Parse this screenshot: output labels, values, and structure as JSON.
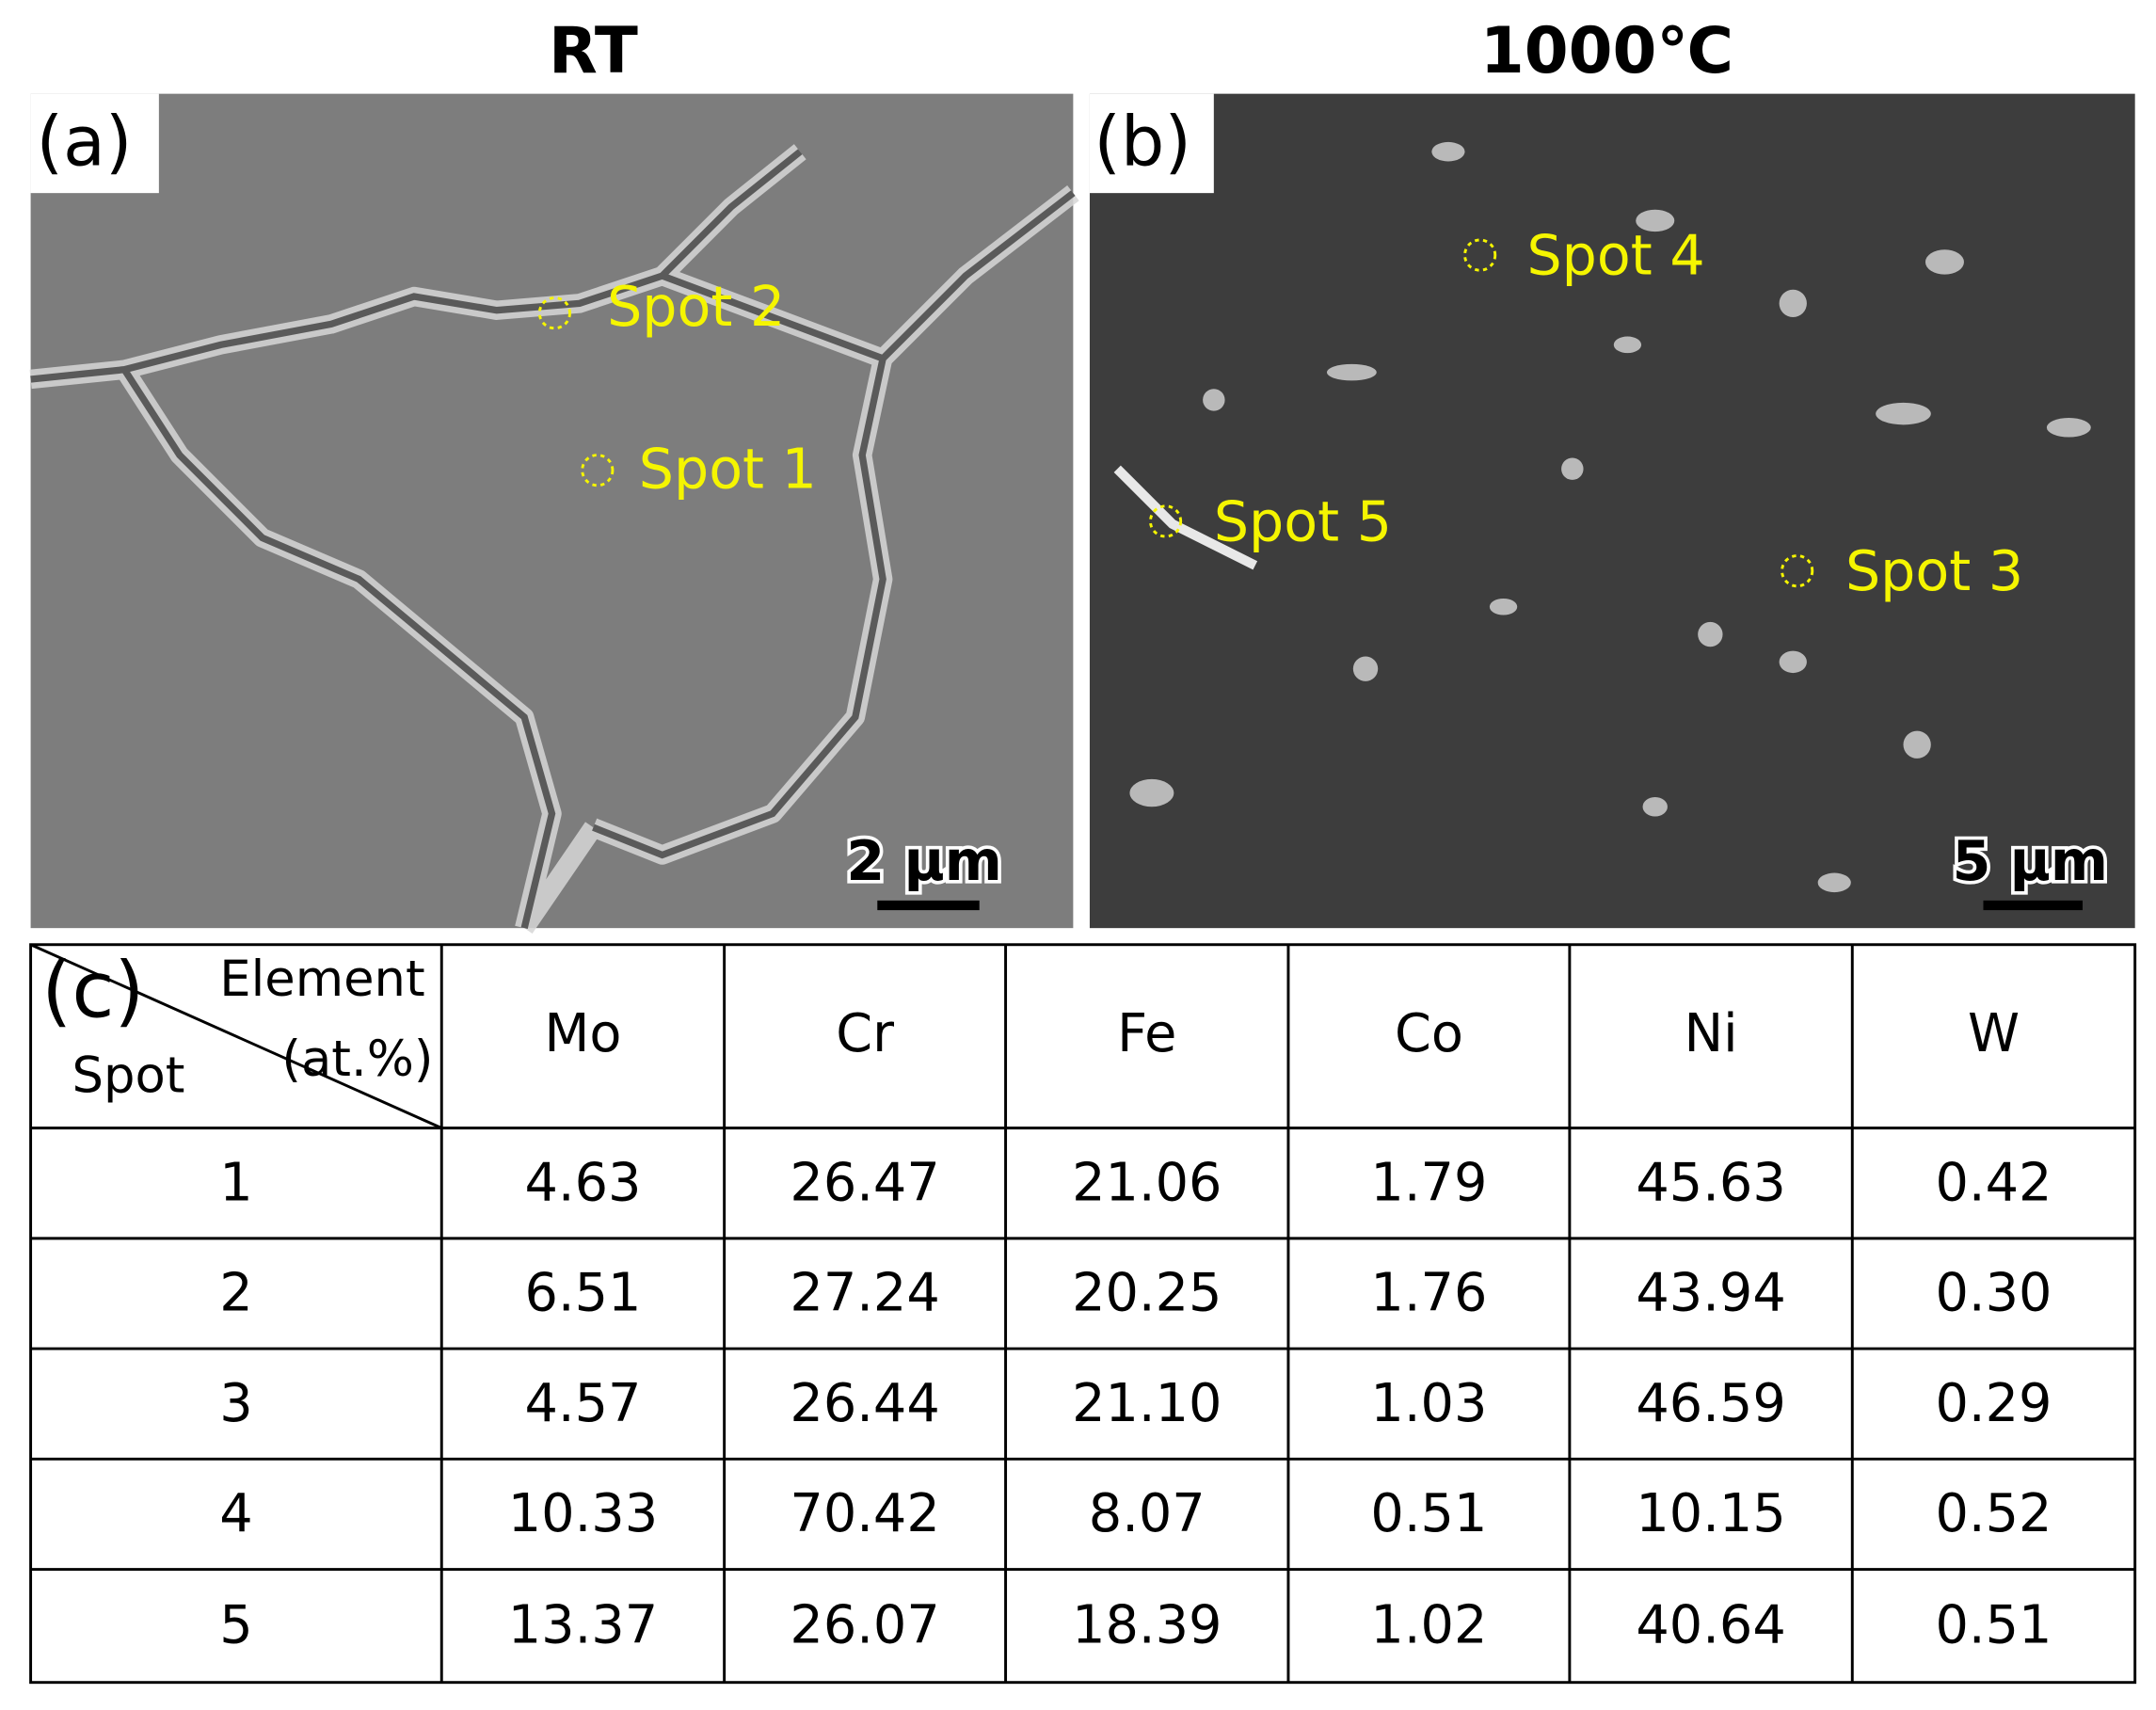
{
  "panels": [
    {
      "label": "(a)",
      "title": "RT",
      "spots": [
        "Spot 2",
        "Spot 1"
      ],
      "scale_bar": "2 μm"
    },
    {
      "label": "(b)",
      "title": "1000℃",
      "spots": [
        "Spot 4",
        "Spot 5",
        "Spot 3"
      ],
      "scale_bar": "5 μm"
    }
  ],
  "table": {
    "label": "(c)",
    "corner": {
      "column_header": "Element",
      "unit": "(at.%)",
      "row_header": "Spot"
    },
    "columns": [
      "Mo",
      "Cr",
      "Fe",
      "Co",
      "Ni",
      "W"
    ],
    "rows": [
      [
        "1",
        "4.63",
        "26.47",
        "21.06",
        "1.79",
        "45.63",
        "0.42"
      ],
      [
        "2",
        "6.51",
        "27.24",
        "20.25",
        "1.76",
        "43.94",
        "0.30"
      ],
      [
        "3",
        "4.57",
        "26.44",
        "21.10",
        "1.03",
        "46.59",
        "0.29"
      ],
      [
        "4",
        "10.33",
        "70.42",
        "8.07",
        "0.51",
        "10.15",
        "0.52"
      ],
      [
        "5",
        "13.37",
        "26.07",
        "18.39",
        "1.02",
        "40.64",
        "0.51"
      ]
    ]
  }
}
